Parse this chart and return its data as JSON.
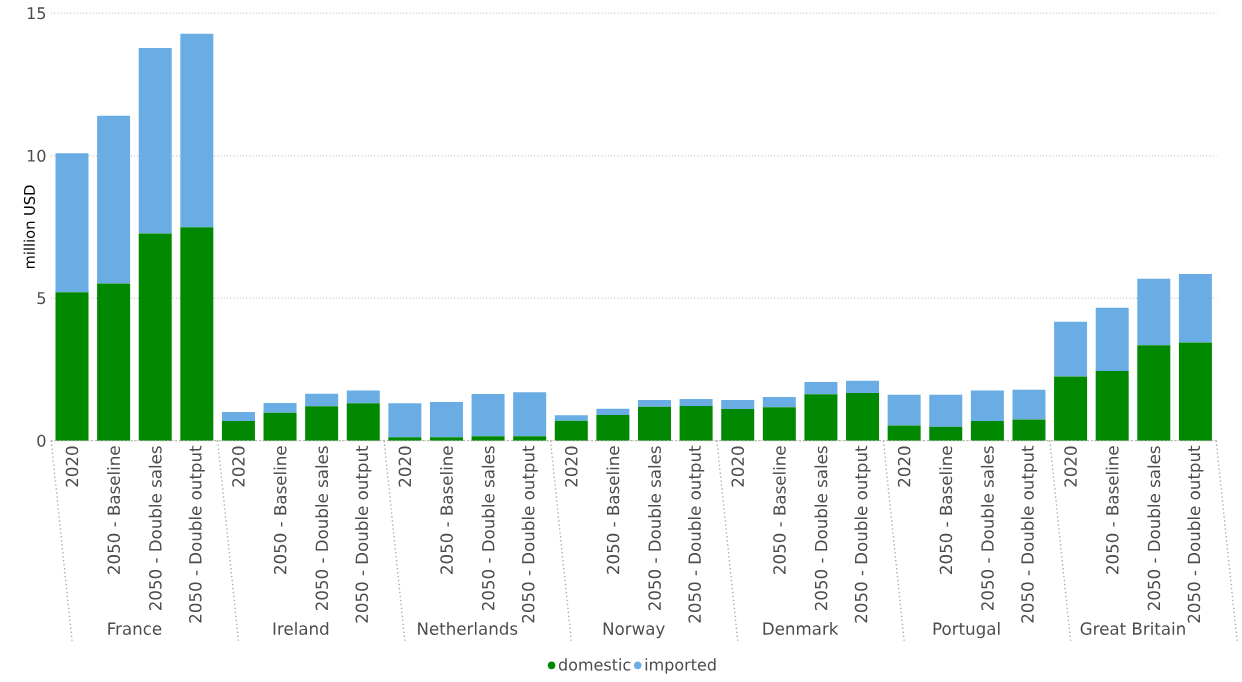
{
  "chart_data": {
    "type": "bar",
    "stacked": true,
    "ylabel": "million USD",
    "categories": [
      "2020",
      "2050 - Baseline",
      "2050 - Double sales",
      "2050 - Double output",
      "2020",
      "2050 - Baseline",
      "2050 - Double sales",
      "2050 - Double output",
      "2020",
      "2050 - Baseline",
      "2050 - Double sales",
      "2050 - Double output",
      "2020",
      "2050 - Baseline",
      "2050 - Double sales",
      "2050 - Double output",
      "2020",
      "2050 - Baseline",
      "2050 - Double sales",
      "2050 - Double output",
      "2020",
      "2050 - Baseline",
      "2050 - Double sales",
      "2050 - Double output",
      "2020",
      "2050 - Baseline",
      "2050 - Double sales",
      "2050 - Double output"
    ],
    "annotations": [
      "France",
      "Ireland",
      "Netherlands",
      "Norway",
      "Denmark",
      "Portugal",
      "Great Britain"
    ],
    "series": [
      {
        "name": "domestic",
        "color": "#008800",
        "values": [
          5.21,
          5.52,
          7.27,
          7.49,
          0.69,
          0.98,
          1.21,
          1.31,
          0.12,
          0.12,
          0.16,
          0.16,
          0.7,
          0.9,
          1.19,
          1.22,
          1.11,
          1.17,
          1.63,
          1.67,
          0.53,
          0.49,
          0.69,
          0.74,
          2.25,
          2.45,
          3.35,
          3.45
        ]
      },
      {
        "name": "imported",
        "color": "#6aade4",
        "values": [
          4.88,
          5.88,
          6.51,
          6.79,
          0.32,
          0.34,
          0.44,
          0.45,
          1.19,
          1.24,
          1.48,
          1.54,
          0.19,
          0.22,
          0.24,
          0.24,
          0.32,
          0.36,
          0.43,
          0.43,
          1.08,
          1.12,
          1.07,
          1.05,
          1.92,
          2.22,
          2.33,
          2.4
        ]
      }
    ],
    "ylim": [
      0,
      15
    ],
    "yticks": [
      0,
      5,
      10,
      15
    ],
    "grid": "y",
    "legend": "bottom"
  }
}
